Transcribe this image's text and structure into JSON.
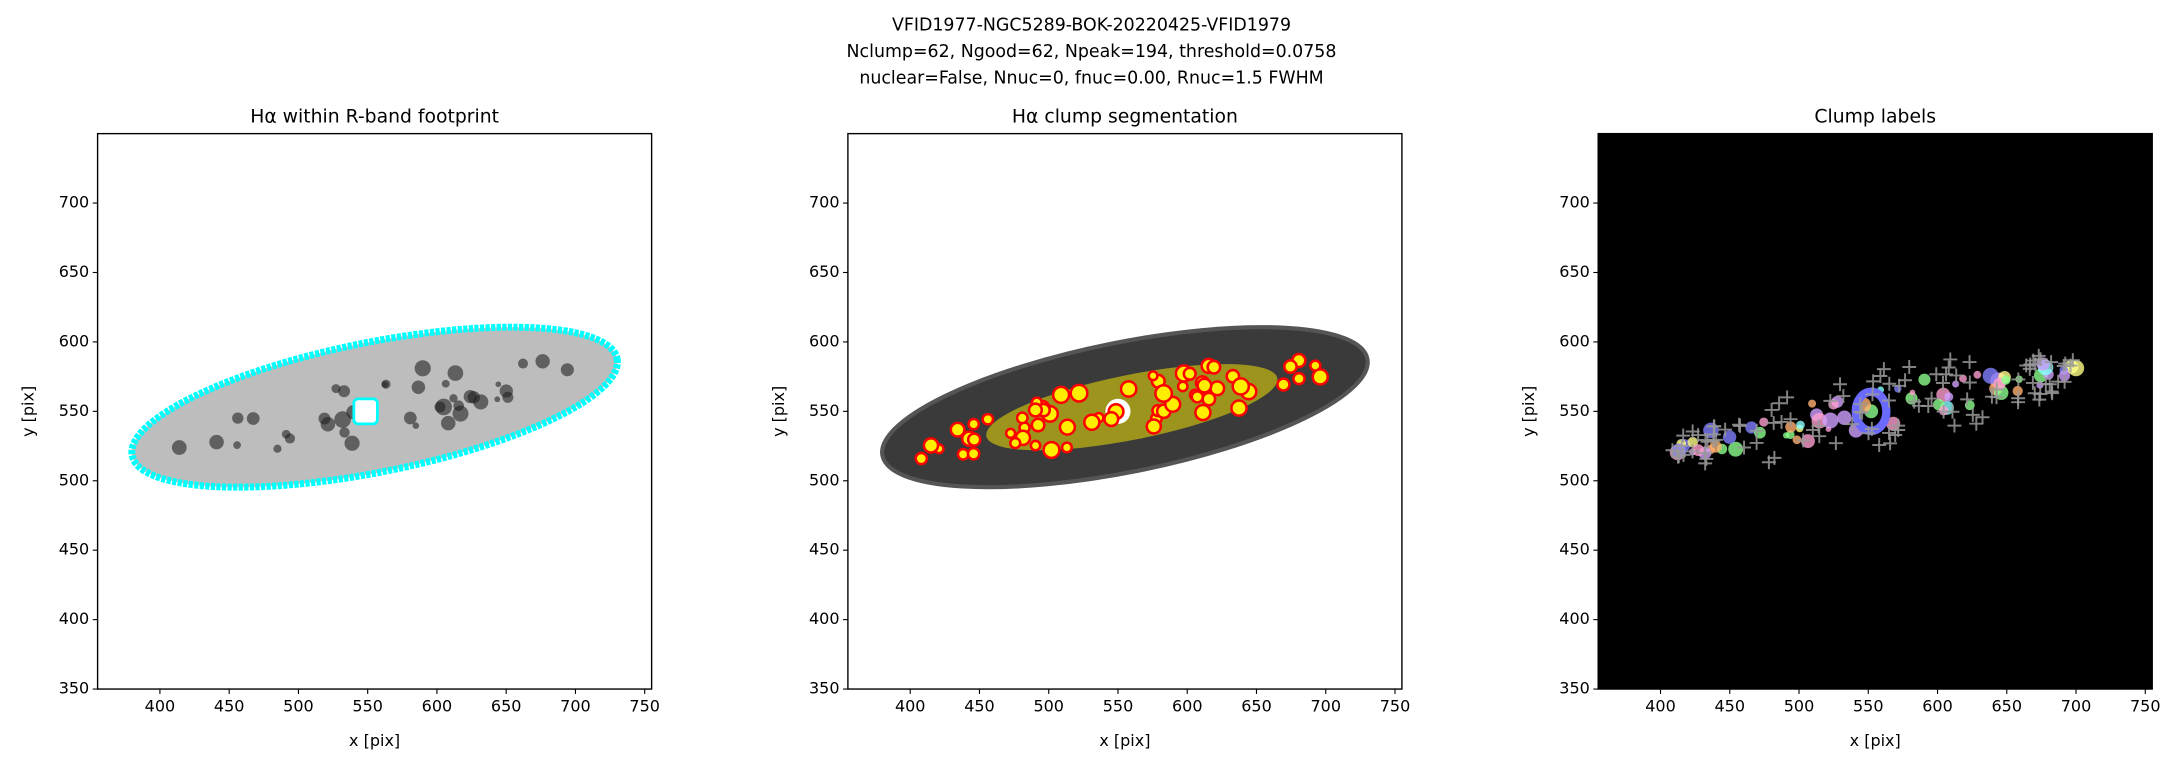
{
  "figure": {
    "title_lines": [
      "VFID1977-NGC5289-BOK-20220425-VFID1979",
      "Nclump=62, Ngood=62, Npeak=194, threshold=0.0758",
      "nuclear=False, Nnuc=0, fnuc=0.00, Rnuc=1.5 FWHM"
    ]
  },
  "chart_data": [
    {
      "type": "image",
      "title": "Hα within R-band footprint",
      "xlabel": "x [pix]",
      "ylabel": "y [pix]",
      "background": "#ffffff",
      "xlim": [
        355,
        755
      ],
      "ylim": [
        350,
        750
      ],
      "xticks": [
        400,
        450,
        500,
        550,
        600,
        650,
        700,
        750
      ],
      "yticks": [
        350,
        400,
        450,
        500,
        550,
        600,
        650,
        700
      ]
    },
    {
      "type": "image",
      "title": "Hα clump segmentation",
      "xlabel": "x [pix]",
      "ylabel": "y [pix]",
      "background": "#ffffff",
      "xlim": [
        355,
        755
      ],
      "ylim": [
        350,
        750
      ],
      "xticks": [
        400,
        450,
        500,
        550,
        600,
        650,
        700,
        750
      ],
      "yticks": [
        350,
        400,
        450,
        500,
        550,
        600,
        650,
        700
      ]
    },
    {
      "type": "image",
      "title": "Clump labels",
      "xlabel": "x [pix]",
      "ylabel": "y [pix]",
      "background": "#000000",
      "xlim": [
        355,
        755
      ],
      "ylim": [
        350,
        750
      ],
      "xticks": [
        400,
        450,
        500,
        550,
        600,
        650,
        700,
        750
      ],
      "yticks": [
        350,
        400,
        450,
        500,
        550,
        600,
        650,
        700
      ]
    }
  ]
}
